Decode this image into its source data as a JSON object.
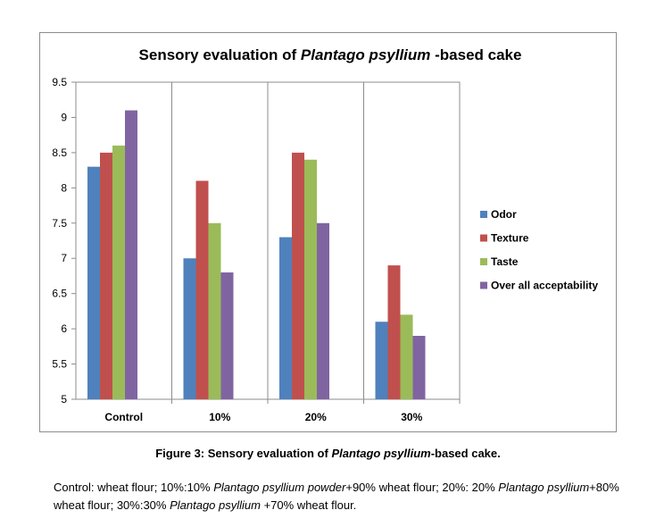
{
  "chart_data": {
    "type": "bar",
    "title_parts": [
      "Sensory evaluation of ",
      "Plantago psyllium",
      " -based cake"
    ],
    "categories": [
      "Control",
      "10%",
      "20%",
      "30%"
    ],
    "series": [
      {
        "name": "Odor",
        "values": [
          8.3,
          7.0,
          7.3,
          6.1
        ],
        "color": "#4f81bd"
      },
      {
        "name": "Texture",
        "values": [
          8.5,
          8.1,
          8.5,
          6.9
        ],
        "color": "#c0504d"
      },
      {
        "name": "Taste",
        "values": [
          8.6,
          7.5,
          8.4,
          6.2
        ],
        "color": "#9bbb59"
      },
      {
        "name": "Over all acceptability",
        "values": [
          9.1,
          6.8,
          7.5,
          5.9
        ],
        "color": "#8064a2"
      }
    ],
    "ylim": [
      5,
      9.5
    ],
    "yticks": [
      "5",
      "5.5",
      "6",
      "6.5",
      "7",
      "7.5",
      "8",
      "8.5",
      "9",
      "9.5"
    ],
    "grid": "vertical category separators",
    "legend_position": "right"
  },
  "caption": {
    "prefix": "Figure 3: Sensory evaluation of ",
    "italic": "Plantago psyllium",
    "suffix": "-based cake."
  },
  "footnote": {
    "t1": "Control: wheat flour; 10%:10% ",
    "i1": "Plantago psyllium powder",
    "t2": "+90% wheat flour; 20%: 20% ",
    "i2": "Plantago psyllium",
    "t3": "+80% wheat flour; 30%:30% ",
    "i3": "Plantago psyllium",
    "t4": " +70% wheat flour."
  }
}
